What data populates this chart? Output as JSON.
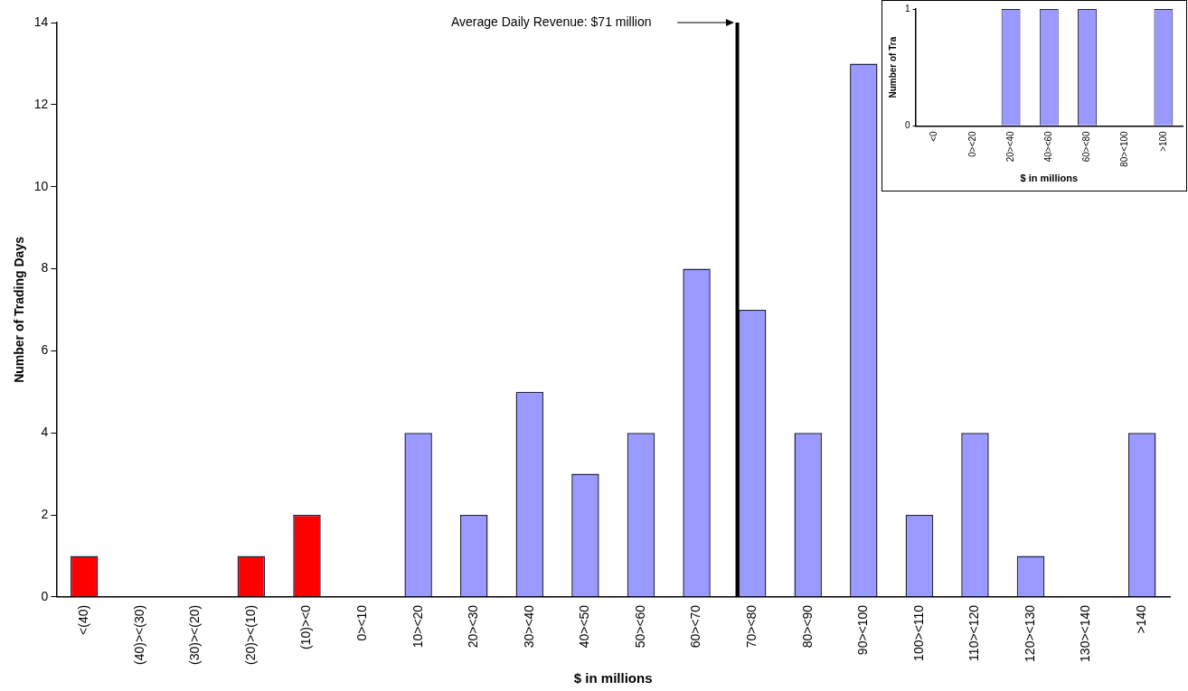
{
  "chart_data": [
    {
      "type": "bar",
      "xlabel": "$ in millions",
      "ylabel": "Number of Trading Days",
      "categories": [
        "<(40)",
        "(40)><(30)",
        "(30)><(20)",
        "(20)><(10)",
        "(10)><0",
        "0><10",
        "10><20",
        "20><30",
        "30><40",
        "40><50",
        "50><60",
        "60><70",
        "70><80",
        "80><90",
        "90><100",
        "100><110",
        "110><120",
        "120><130",
        "130><140",
        ">140"
      ],
      "values": [
        1,
        0,
        0,
        1,
        2,
        0,
        4,
        2,
        5,
        3,
        4,
        8,
        7,
        4,
        13,
        2,
        4,
        1,
        0,
        4
      ],
      "colors": [
        "#ff0000",
        "#ff0000",
        "#ff0000",
        "#ff0000",
        "#ff0000",
        "#9999ff",
        "#9999ff",
        "#9999ff",
        "#9999ff",
        "#9999ff",
        "#9999ff",
        "#9999ff",
        "#9999ff",
        "#9999ff",
        "#9999ff",
        "#9999ff",
        "#9999ff",
        "#9999ff",
        "#9999ff",
        "#9999ff"
      ],
      "ylim": [
        0,
        14
      ],
      "yticks": [
        0,
        2,
        4,
        6,
        8,
        10,
        12,
        14
      ],
      "ref_lines": [
        {
          "axis": "x",
          "value": "70><80",
          "label": "Average Daily Revenue: $71 million",
          "color": "#000000"
        }
      ]
    },
    {
      "type": "bar",
      "xlabel": "$ in millions",
      "ylabel": "Number of Tra",
      "categories": [
        "<0",
        "0><20",
        "20><40",
        "40><60",
        "60><80",
        "80><100",
        ">100"
      ],
      "values": [
        0,
        0,
        1,
        1,
        1,
        0,
        1
      ],
      "colors": [
        "#9999ff",
        "#9999ff",
        "#9999ff",
        "#9999ff",
        "#9999ff",
        "#9999ff",
        "#9999ff"
      ],
      "ylim": [
        0,
        1
      ],
      "yticks": [
        0,
        1
      ]
    }
  ]
}
